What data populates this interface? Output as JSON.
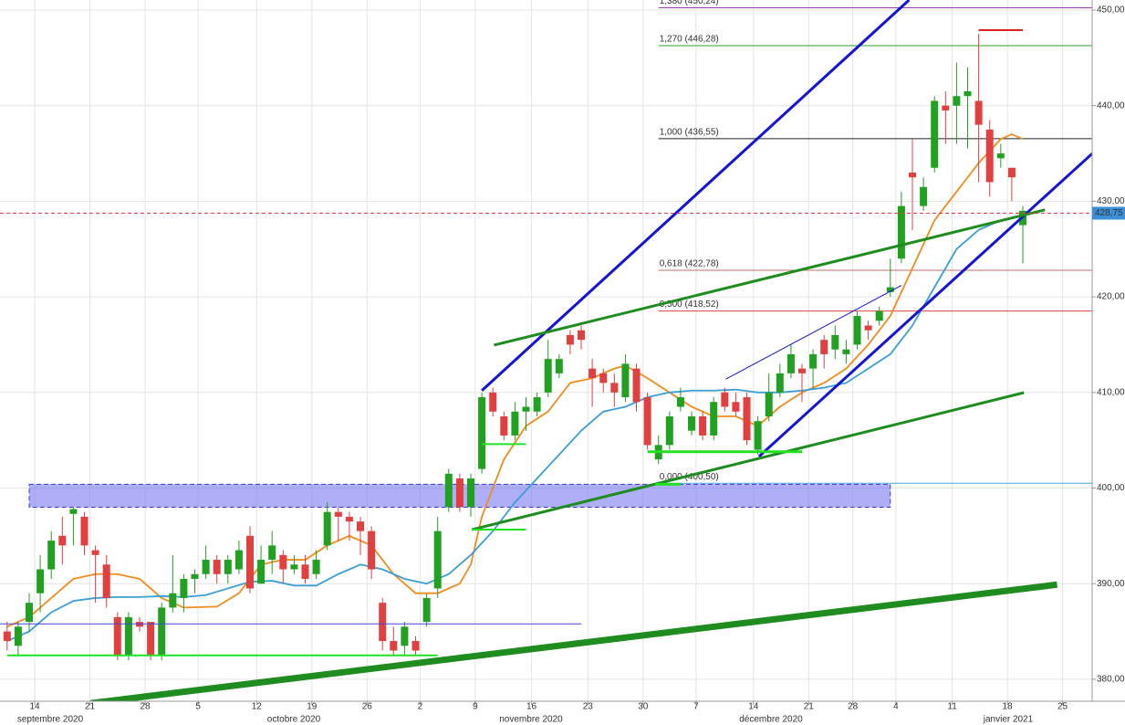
{
  "chart_data": {
    "type": "candlestick",
    "x": [
      -2,
      -1,
      0,
      1,
      2,
      3,
      4,
      5,
      6,
      7,
      8,
      9,
      10,
      11,
      12,
      13,
      14,
      15,
      16,
      17,
      18,
      19,
      20,
      21,
      22,
      23,
      24,
      25,
      26,
      27,
      28,
      29,
      30,
      31,
      32,
      33,
      34,
      35,
      36,
      37,
      38,
      39,
      40,
      41,
      42,
      43,
      44,
      45,
      46,
      47,
      48,
      49,
      50,
      51,
      52,
      53,
      54,
      55,
      56,
      57,
      58,
      59,
      60,
      61,
      62,
      63,
      64,
      65,
      66,
      67,
      68,
      69,
      70,
      71,
      72,
      73,
      74,
      75,
      76,
      77,
      78,
      79,
      80,
      81,
      82,
      83,
      84,
      85,
      86,
      87,
      88,
      89,
      90
    ],
    "open": [
      385,
      383.5,
      386,
      389,
      391.5,
      395,
      397.3,
      397,
      393.5,
      392,
      386.5,
      382.5,
      386,
      386,
      382.5,
      387.5,
      388.5,
      390.5,
      391,
      392.5,
      391,
      391.5,
      395,
      390,
      392.5,
      393,
      391.5,
      392,
      391,
      394,
      397.5,
      397,
      396.5,
      395.5,
      388,
      384,
      383.5,
      384,
      386,
      389.5,
      398,
      401,
      398,
      402,
      410,
      407.5,
      405.5,
      408,
      408,
      410,
      412,
      416,
      416.5,
      412.5,
      412,
      411,
      409.5,
      412.5,
      409.5,
      403,
      404.5,
      408.5,
      406,
      407.5,
      405.5,
      410,
      409,
      409.5,
      404,
      407.5,
      410,
      412,
      412.5,
      412.5,
      415.5,
      414.5,
      414,
      415,
      417,
      417.5,
      420.5,
      424,
      433,
      429.5,
      433.5,
      440,
      440,
      441,
      440.5,
      437.5,
      434.5,
      433.5,
      427.5
    ],
    "high": [
      386,
      386,
      389,
      393,
      395.5,
      397,
      398,
      397.5,
      394,
      393,
      387,
      387,
      386.5,
      386,
      388,
      393,
      391,
      391.5,
      394,
      393,
      393,
      394.5,
      396,
      394,
      395.5,
      393.5,
      393,
      393,
      393.5,
      398.5,
      398,
      397.5,
      397,
      396,
      388.5,
      385.5,
      386,
      384.5,
      389,
      397,
      402,
      401.5,
      401.5,
      410,
      410.5,
      408,
      409,
      409.5,
      410,
      415.5,
      414,
      416.5,
      417,
      413.5,
      412.5,
      412,
      414,
      413,
      410,
      405.5,
      408,
      410.5,
      408,
      408,
      409.5,
      410.5,
      410,
      410,
      407.5,
      412,
      413,
      415,
      413,
      414.5,
      416,
      417,
      415.5,
      418.5,
      417.5,
      419,
      424,
      431,
      436.5,
      432.5,
      441,
      441.5,
      444.5,
      444,
      447.5,
      438.5,
      436,
      433.5,
      429.5
    ],
    "low": [
      383,
      382.5,
      385,
      387,
      390.5,
      392,
      394,
      393,
      388,
      387.5,
      382,
      382,
      385,
      382,
      382,
      387,
      387,
      389,
      390.5,
      390,
      390,
      391,
      389,
      390,
      391,
      390,
      391,
      390,
      390.5,
      393.5,
      394.5,
      394.5,
      393,
      390.5,
      383,
      382.5,
      382.5,
      382.5,
      385.5,
      388.5,
      397.5,
      397.5,
      397,
      401.5,
      407.5,
      405,
      405,
      406,
      407.5,
      409.5,
      411.5,
      414,
      414.5,
      408.5,
      410,
      408.5,
      409,
      408,
      404,
      402.5,
      404,
      408,
      405.5,
      405,
      405,
      408,
      407.5,
      404.5,
      403.5,
      407,
      409.5,
      411.5,
      409,
      410.5,
      412.5,
      413.5,
      413,
      414.5,
      415.5,
      417,
      420,
      423.5,
      427,
      429,
      433,
      436,
      436,
      435.5,
      432,
      430.5,
      433.5,
      430,
      423.5
    ],
    "close": [
      384,
      385.5,
      388,
      391.5,
      394.5,
      394,
      397.8,
      394,
      393,
      388.5,
      382.5,
      386.5,
      385.5,
      382.5,
      387.5,
      389,
      390.5,
      391,
      392.5,
      391,
      392.5,
      393.5,
      389.5,
      392.5,
      394,
      391.5,
      392,
      390.5,
      392.5,
      397.5,
      397,
      396.5,
      395.5,
      391.5,
      384,
      383,
      385.5,
      383,
      388.5,
      395.5,
      401.5,
      398,
      401,
      409.5,
      408,
      405.5,
      408,
      408.5,
      409.5,
      413.5,
      413.5,
      415,
      415.5,
      411.5,
      411,
      410,
      413,
      409,
      404.5,
      404.5,
      407.5,
      409.5,
      407.5,
      405.5,
      409,
      408.5,
      408,
      405,
      407,
      410,
      412,
      414,
      412,
      414,
      414,
      416,
      414.5,
      418,
      416.5,
      418.5,
      421,
      429.5,
      432.5,
      431.5,
      440.5,
      439.5,
      441,
      441.5,
      438,
      432,
      435,
      432.5,
      429
    ],
    "up_color": "#22a022",
    "down_color": "#e04040",
    "averages": [
      {
        "color": "#f08c1e",
        "x": [
          -2,
          0,
          2,
          4,
          6,
          8,
          10,
          12,
          14,
          17,
          19,
          21,
          23,
          25,
          27,
          29,
          31,
          33,
          35,
          37,
          39,
          40,
          41,
          43,
          45,
          47,
          49,
          51,
          53,
          54,
          56,
          58,
          60,
          62,
          64,
          66,
          68,
          70,
          72,
          74,
          76,
          78,
          80,
          82,
          84,
          86,
          88,
          89,
          90
        ],
        "values": [
          385.5,
          386.5,
          388.5,
          390.5,
          391,
          391,
          390.5,
          388.5,
          387.5,
          387.6,
          389,
          392,
          392.5,
          392.5,
          394,
          395,
          394,
          391,
          389,
          389,
          390,
          392,
          397,
          403,
          406.5,
          408,
          411,
          411.5,
          412.5,
          412.8,
          411.5,
          410,
          408.5,
          407.5,
          407.5,
          406.5,
          408.5,
          410,
          411,
          412.5,
          415,
          418,
          423,
          428,
          431,
          434,
          436.5,
          437,
          436.5
        ]
      },
      {
        "color": "#3b9fd6",
        "x": [
          -2,
          0,
          2,
          4,
          6,
          8,
          10,
          12,
          14,
          16,
          18,
          20,
          22,
          24,
          26,
          28,
          30,
          32,
          34,
          36,
          38,
          40,
          42,
          44,
          46,
          48,
          50,
          52,
          54,
          56,
          58,
          60,
          62,
          64,
          66,
          68,
          70,
          72,
          74,
          76,
          78,
          80,
          82,
          84,
          86,
          88,
          90
        ],
        "values": [
          384,
          385,
          387,
          388.2,
          388.5,
          388.6,
          388.6,
          388.7,
          388.6,
          388.8,
          389.5,
          390.2,
          390.3,
          389.8,
          389.8,
          391,
          392,
          391.5,
          390.5,
          390,
          391,
          393,
          395.5,
          398.5,
          401,
          403.5,
          406,
          408,
          408.5,
          409.5,
          410,
          410.2,
          410.2,
          410.3,
          410,
          410,
          410.2,
          410.5,
          411,
          412.5,
          414,
          417,
          421,
          425,
          427,
          428,
          428.5
        ]
      }
    ],
    "levels": [
      {
        "label": "1,380 (450,24)",
        "value": 450.24,
        "color": "#a040b0"
      },
      {
        "label": "1,270 (446,28)",
        "value": 446.28,
        "color": "#2ca02c"
      },
      {
        "label": "1,000 (436,55)",
        "value": 436.55,
        "color": "#222222"
      },
      {
        "label": "0,618 (422,78)",
        "value": 422.78,
        "color": "#c07070"
      },
      {
        "label": "0,500 (418,52)",
        "value": 418.52,
        "color": "#e04040"
      },
      {
        "label": "0,000 (400,50)",
        "value": 400.5,
        "color": "#4aa8e0"
      }
    ],
    "levels_start": 57,
    "last_price": {
      "value": 428.75,
      "label": "428,75"
    },
    "zone": {
      "x": [
        0,
        78
      ],
      "y": [
        398.0,
        400.4
      ]
    },
    "trendlines": [
      {
        "x": [
          41,
          79.7
        ],
        "y": [
          410.2,
          451.05
        ],
        "color": "#1414d2",
        "width": 3
      },
      {
        "x": [
          66.1,
          96.3
        ],
        "y": [
          403.3,
          435.0
        ],
        "color": "#1414d2",
        "width": 3
      },
      {
        "x": [
          63.1,
          79
        ],
        "y": [
          411.4,
          421.2
        ],
        "color": "#1414d2",
        "width": 1
      },
      {
        "x": [
          -2.645,
          50
        ],
        "y": [
          385.8,
          385.8
        ],
        "color": "#4646e0",
        "width": 1
      },
      {
        "x": [
          42.1,
          92
        ],
        "y": [
          414.95,
          429.1
        ],
        "color": "#1e8c1e",
        "width": 3
      },
      {
        "x": [
          40.1,
          90.1
        ],
        "y": [
          395.65,
          409.98
        ],
        "color": "#1e8c1e",
        "width": 3
      },
      {
        "x": [
          5.6,
          93.1
        ],
        "y": [
          377.5,
          389.9
        ],
        "color": "#1e8c1e",
        "width": 7
      },
      {
        "x": [
          -2,
          37
        ],
        "y": [
          382.5,
          382.5
        ],
        "color": "#22e022",
        "width": 2
      },
      {
        "x": [
          41,
          45
        ],
        "y": [
          404.6,
          404.6
        ],
        "color": "#22e022",
        "width": 2
      },
      {
        "x": [
          40.1,
          45
        ],
        "y": [
          395.65,
          395.65
        ],
        "color": "#22e022",
        "width": 2
      },
      {
        "x": [
          56,
          70
        ],
        "y": [
          403.8,
          403.8
        ],
        "color": "#22e022",
        "width": 3
      },
      {
        "x": [
          56.7,
          59
        ],
        "y": [
          400.4,
          400.4
        ],
        "color": "#22e022",
        "width": 3
      },
      {
        "x": [
          86,
          90
        ],
        "y": [
          447.9,
          447.9
        ],
        "color": "#e02020",
        "width": 2
      }
    ],
    "xlim": [
      -2.645,
      96.28
    ],
    "ylim": [
      377.7,
      451.05
    ],
    "xticks": [
      {
        "value": 0.5,
        "label": "14"
      },
      {
        "value": 5.5,
        "label": "21"
      },
      {
        "value": 10.5,
        "label": "28"
      },
      {
        "value": 15.3,
        "label": "5"
      },
      {
        "value": 20.6,
        "label": "12"
      },
      {
        "value": 25.6,
        "label": "19"
      },
      {
        "value": 30.6,
        "label": "26"
      },
      {
        "value": 35.4,
        "label": "2"
      },
      {
        "value": 40.4,
        "label": "9"
      },
      {
        "value": 45.5,
        "label": "16"
      },
      {
        "value": 50.6,
        "label": "23"
      },
      {
        "value": 55.6,
        "label": "30"
      },
      {
        "value": 60.4,
        "label": "7"
      },
      {
        "value": 65.6,
        "label": "14"
      },
      {
        "value": 70.6,
        "label": "21"
      },
      {
        "value": 74.6,
        "label": "28"
      },
      {
        "value": 78.5,
        "label": "4"
      },
      {
        "value": 83.6,
        "label": "11"
      },
      {
        "value": 88.6,
        "label": "18"
      },
      {
        "value": 93.6,
        "label": "25"
      }
    ],
    "months": [
      "septembre 2020",
      "octobre 2020",
      "novembre 2020",
      "décembre 2020",
      "janvier 2021"
    ],
    "yticks": [
      {
        "value": 380,
        "label": "380,00"
      },
      {
        "value": 390,
        "label": "390,00"
      },
      {
        "value": 400,
        "label": "400,00"
      },
      {
        "value": 410,
        "label": "410,00"
      },
      {
        "value": 420,
        "label": "420,00"
      },
      {
        "value": 430,
        "label": "430,00"
      },
      {
        "value": 440,
        "label": "440,00"
      },
      {
        "value": 450,
        "label": "450,00"
      }
    ],
    "grid": true
  }
}
